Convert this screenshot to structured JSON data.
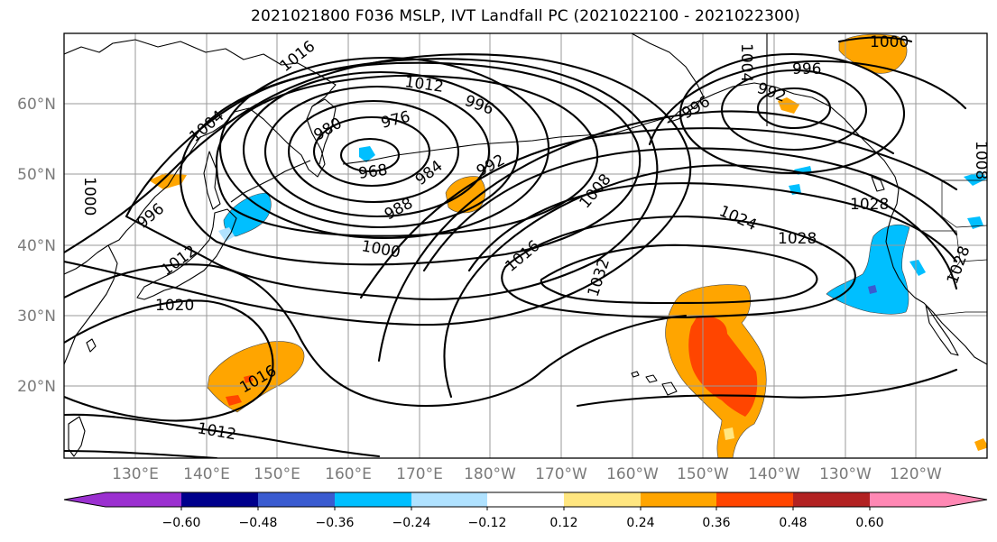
{
  "title": "2021021800 F036 MSLP, IVT Landfall PC (2021022100 - 2021022300)",
  "lat_labels": [
    "60°N",
    "50°N",
    "40°N",
    "30°N",
    "20°N"
  ],
  "lon_labels": [
    "130°E",
    "140°E",
    "150°E",
    "160°E",
    "170°E",
    "180°W",
    "170°W",
    "160°W",
    "150°W",
    "140°W",
    "130°W",
    "120°W"
  ],
  "contour_labels": [
    "1016",
    "1012",
    "996",
    "1004",
    "980",
    "976",
    "968",
    "984",
    "992",
    "988",
    "1000",
    "996",
    "1000",
    "1012",
    "1020",
    "1016",
    "1012",
    "1008",
    "1016",
    "1024",
    "1032",
    "1028",
    "1028",
    "1004",
    "996",
    "992",
    "996",
    "1000",
    "1008",
    "1028"
  ],
  "colorbar": {
    "ticks": [
      "−0.60",
      "−0.48",
      "−0.36",
      "−0.24",
      "−0.12",
      "0.12",
      "0.24",
      "0.36",
      "0.48",
      "0.60"
    ],
    "colors": [
      "#9b30d0",
      "#00008c",
      "#3a5bd0",
      "#00bfff",
      "#b0e2ff",
      "#ffffff",
      "#ffe680",
      "#ffa500",
      "#ff4500",
      "#b22222",
      "#ff88b4"
    ]
  }
}
